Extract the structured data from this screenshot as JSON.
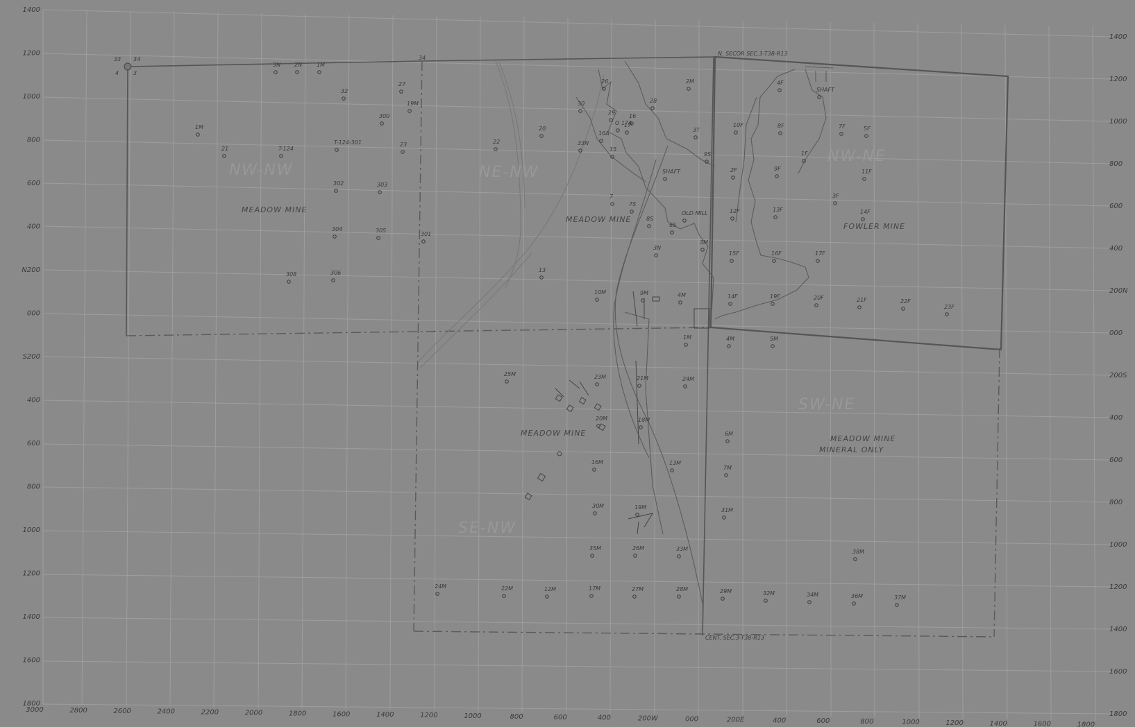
{
  "title": "",
  "colors": {
    "paper": "#8a8a8a",
    "ink": "#3a3a3a",
    "grid": "#9e9e9e",
    "boundary": "#555555"
  },
  "left_axis": [
    "1400",
    "1200",
    "1000",
    "800",
    "600",
    "400",
    "N200",
    "000",
    "S200",
    "400",
    "600",
    "800",
    "1000",
    "1200",
    "1400",
    "1600",
    "1800"
  ],
  "right_axis": [
    "1400",
    "1200",
    "1000",
    "800",
    "600",
    "400",
    "200N",
    "000",
    "200S",
    "400",
    "600",
    "800",
    "1000",
    "1200",
    "1400",
    "1600",
    "1800"
  ],
  "bottom_axis": [
    "3000",
    "2800",
    "2600",
    "2400",
    "2200",
    "2000",
    "1800",
    "1600",
    "1400",
    "1200",
    "1000",
    "800",
    "600",
    "400",
    "200W",
    "000",
    "200E",
    "400",
    "600",
    "800",
    "1000",
    "1200",
    "1400",
    "1600",
    "1800"
  ],
  "mine_labels": [
    {
      "id": "meadow-mine-nw",
      "lines": [
        "MEADOW MINE"
      ]
    },
    {
      "id": "meadow-mine-ne-nw",
      "lines": [
        "MEADOW MINE"
      ]
    },
    {
      "id": "fowler-mine",
      "lines": [
        "FOWLER MINE"
      ]
    },
    {
      "id": "meadow-mine-sw",
      "lines": [
        "MEADOW MINE"
      ]
    },
    {
      "id": "meadow-mine-mineral-only",
      "lines": [
        "MEADOW MINE",
        "MINERAL ONLY"
      ]
    }
  ],
  "quarter_labels": [
    "NW-NW",
    "NE-NW",
    "NW-NE",
    "SW-NE",
    "SE-NW"
  ],
  "corner_labels": {
    "nw_33": "33",
    "nw_34": "34",
    "nw_4": "4",
    "nw_3": "3",
    "top_mid": "34",
    "top_right_text": "N. SECOR SEC.3-T38-R13",
    "bottom_text": "CENT. SEC.3-T38-R13"
  },
  "holes": [
    {
      "label": "3N"
    },
    {
      "label": "2N"
    },
    {
      "label": "1M"
    },
    {
      "label": "32"
    },
    {
      "label": "27"
    },
    {
      "label": "19M"
    },
    {
      "label": "300"
    },
    {
      "label": "1M"
    },
    {
      "label": "21"
    },
    {
      "label": "T-124"
    },
    {
      "label": "T-124-301"
    },
    {
      "label": "23"
    },
    {
      "label": "302"
    },
    {
      "label": "303"
    },
    {
      "label": "304"
    },
    {
      "label": "305"
    },
    {
      "label": "301"
    },
    {
      "label": "308"
    },
    {
      "label": "306"
    },
    {
      "label": "22"
    },
    {
      "label": "20"
    },
    {
      "label": "33N"
    },
    {
      "label": "30"
    },
    {
      "label": "29"
    },
    {
      "label": "28"
    },
    {
      "label": "17"
    },
    {
      "label": "O 17A"
    },
    {
      "label": "16"
    },
    {
      "label": "26"
    },
    {
      "label": "16A"
    },
    {
      "label": "15"
    },
    {
      "label": "2M"
    },
    {
      "label": "3T"
    },
    {
      "label": "9S"
    },
    {
      "label": "SHAFT"
    },
    {
      "label": "7"
    },
    {
      "label": "7S"
    },
    {
      "label": "8S"
    },
    {
      "label": "6S"
    },
    {
      "label": "OLD MILL"
    },
    {
      "label": "3N"
    },
    {
      "label": "3M"
    },
    {
      "label": "13"
    },
    {
      "label": "10M"
    },
    {
      "label": "9M"
    },
    {
      "label": "4M"
    },
    {
      "label": "1M"
    },
    {
      "label": "4M"
    },
    {
      "label": "5M"
    },
    {
      "label": "25M"
    },
    {
      "label": "23M"
    },
    {
      "label": "21M"
    },
    {
      "label": "24M"
    },
    {
      "label": "20M"
    },
    {
      "label": "18M"
    },
    {
      "label": "6M"
    },
    {
      "label": "16M"
    },
    {
      "label": "13M"
    },
    {
      "label": "7M"
    },
    {
      "label": "30M"
    },
    {
      "label": "19M"
    },
    {
      "label": "31M"
    },
    {
      "label": "35M"
    },
    {
      "label": "26M"
    },
    {
      "label": "33M"
    },
    {
      "label": "38M"
    },
    {
      "label": "24M"
    },
    {
      "label": "22M"
    },
    {
      "label": "12M"
    },
    {
      "label": "17M"
    },
    {
      "label": "27M"
    },
    {
      "label": "28M"
    },
    {
      "label": "29M"
    },
    {
      "label": "32M"
    },
    {
      "label": "34M"
    },
    {
      "label": "36M"
    },
    {
      "label": "37M"
    },
    {
      "label": "4F"
    },
    {
      "label": "SHAFT"
    },
    {
      "label": "10F"
    },
    {
      "label": "8F"
    },
    {
      "label": "7F"
    },
    {
      "label": "5F"
    },
    {
      "label": "1F"
    },
    {
      "label": "9F"
    },
    {
      "label": "2F"
    },
    {
      "label": "11F"
    },
    {
      "label": "3F"
    },
    {
      "label": "14F"
    },
    {
      "label": "12F"
    },
    {
      "label": "13F"
    },
    {
      "label": "15F"
    },
    {
      "label": "16F"
    },
    {
      "label": "17F"
    },
    {
      "label": "14F"
    },
    {
      "label": "19F"
    },
    {
      "label": "20F"
    },
    {
      "label": "21F"
    },
    {
      "label": "22F"
    },
    {
      "label": "23F"
    }
  ]
}
